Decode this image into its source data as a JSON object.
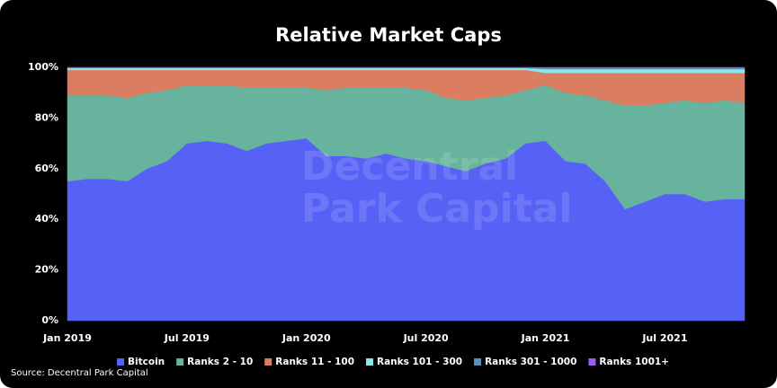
{
  "chart_data": {
    "type": "stacked_area",
    "title": "Relative Market Caps",
    "source": "Source: Decentral Park Capital",
    "watermark": [
      "Decentral",
      "Park Capital"
    ],
    "x": [
      "2019-01",
      "2019-02",
      "2019-03",
      "2019-04",
      "2019-05",
      "2019-06",
      "2019-07",
      "2019-08",
      "2019-09",
      "2019-10",
      "2019-11",
      "2019-12",
      "2020-01",
      "2020-02",
      "2020-03",
      "2020-04",
      "2020-05",
      "2020-06",
      "2020-07",
      "2020-08",
      "2020-09",
      "2020-10",
      "2020-11",
      "2020-12",
      "2021-01",
      "2021-02",
      "2021-03",
      "2021-04",
      "2021-05",
      "2021-06",
      "2021-07",
      "2021-08",
      "2021-09",
      "2021-10",
      "2021-11"
    ],
    "xlim": [
      "2019-01",
      "2021-11"
    ],
    "xticks": [
      {
        "value": "2019-01",
        "label": "Jan 2019"
      },
      {
        "value": "2019-07",
        "label": "Jul 2019"
      },
      {
        "value": "2020-01",
        "label": "Jan 2020"
      },
      {
        "value": "2020-07",
        "label": "Jul 2020"
      },
      {
        "value": "2021-01",
        "label": "Jan 2021"
      },
      {
        "value": "2021-07",
        "label": "Jul 2021"
      }
    ],
    "ylim": [
      0,
      100
    ],
    "yticks": [
      {
        "value": 0,
        "label": "0%"
      },
      {
        "value": 20,
        "label": "20%"
      },
      {
        "value": 40,
        "label": "40%"
      },
      {
        "value": 60,
        "label": "60%"
      },
      {
        "value": 80,
        "label": "80%"
      },
      {
        "value": 100,
        "label": "100%"
      }
    ],
    "series": [
      {
        "name": "Bitcoin",
        "color": "#5662f6",
        "values": [
          55,
          56,
          56,
          55,
          60,
          63,
          70,
          71,
          70,
          67,
          70,
          71,
          72,
          65,
          65,
          64,
          66,
          64,
          63,
          61,
          59,
          62,
          64,
          70,
          71,
          63,
          62,
          55,
          44,
          47,
          50,
          50,
          47,
          48,
          48
        ]
      },
      {
        "name": "Ranks 2 - 10",
        "color": "#68b39d",
        "values": [
          34,
          33,
          33,
          33,
          30,
          28,
          23,
          22,
          23,
          25,
          22,
          21,
          20,
          26,
          27,
          28,
          26,
          28,
          28,
          27,
          28,
          26,
          25,
          21,
          22,
          27,
          27,
          32,
          41,
          38,
          36,
          37,
          39,
          39,
          38
        ]
      },
      {
        "name": "Ranks 11 - 100",
        "color": "#db7d61",
        "values": [
          10,
          10,
          10,
          11,
          9,
          8,
          6,
          6,
          6,
          7,
          7,
          7,
          7,
          8,
          7,
          7,
          7,
          7,
          8,
          11,
          12,
          11,
          10,
          8,
          4.8,
          7.8,
          8.8,
          10.8,
          12.8,
          12.8,
          11.8,
          10.8,
          11.8,
          10.8,
          11.8
        ]
      },
      {
        "name": "Ranks 101 - 300",
        "color": "#8fe6e6",
        "values": [
          0.7,
          0.7,
          0.7,
          0.7,
          0.7,
          0.7,
          0.7,
          0.7,
          0.7,
          0.7,
          0.7,
          0.7,
          0.7,
          0.7,
          0.7,
          0.7,
          0.7,
          0.7,
          0.7,
          0.7,
          0.7,
          0.7,
          0.7,
          0.7,
          1.5,
          1.5,
          1.5,
          1.5,
          1.5,
          1.5,
          1.5,
          1.5,
          1.5,
          1.5,
          1.5
        ]
      },
      {
        "name": "Ranks 301 - 1000",
        "color": "#5a8fc2",
        "values": [
          0.2,
          0.2,
          0.2,
          0.2,
          0.2,
          0.2,
          0.2,
          0.2,
          0.2,
          0.2,
          0.2,
          0.2,
          0.2,
          0.2,
          0.2,
          0.2,
          0.2,
          0.2,
          0.2,
          0.2,
          0.2,
          0.2,
          0.2,
          0.2,
          0.6,
          0.6,
          0.6,
          0.6,
          0.6,
          0.6,
          0.6,
          0.6,
          0.6,
          0.6,
          0.6
        ]
      },
      {
        "name": "Ranks 1001+",
        "color": "#9a5cf2",
        "values": [
          0.1,
          0.1,
          0.1,
          0.1,
          0.1,
          0.1,
          0.1,
          0.1,
          0.1,
          0.1,
          0.1,
          0.1,
          0.1,
          0.1,
          0.1,
          0.1,
          0.1,
          0.1,
          0.1,
          0.1,
          0.1,
          0.1,
          0.1,
          0.1,
          0.1,
          0.1,
          0.1,
          0.1,
          0.1,
          0.1,
          0.1,
          0.1,
          0.1,
          0.1,
          0.1
        ]
      }
    ]
  }
}
